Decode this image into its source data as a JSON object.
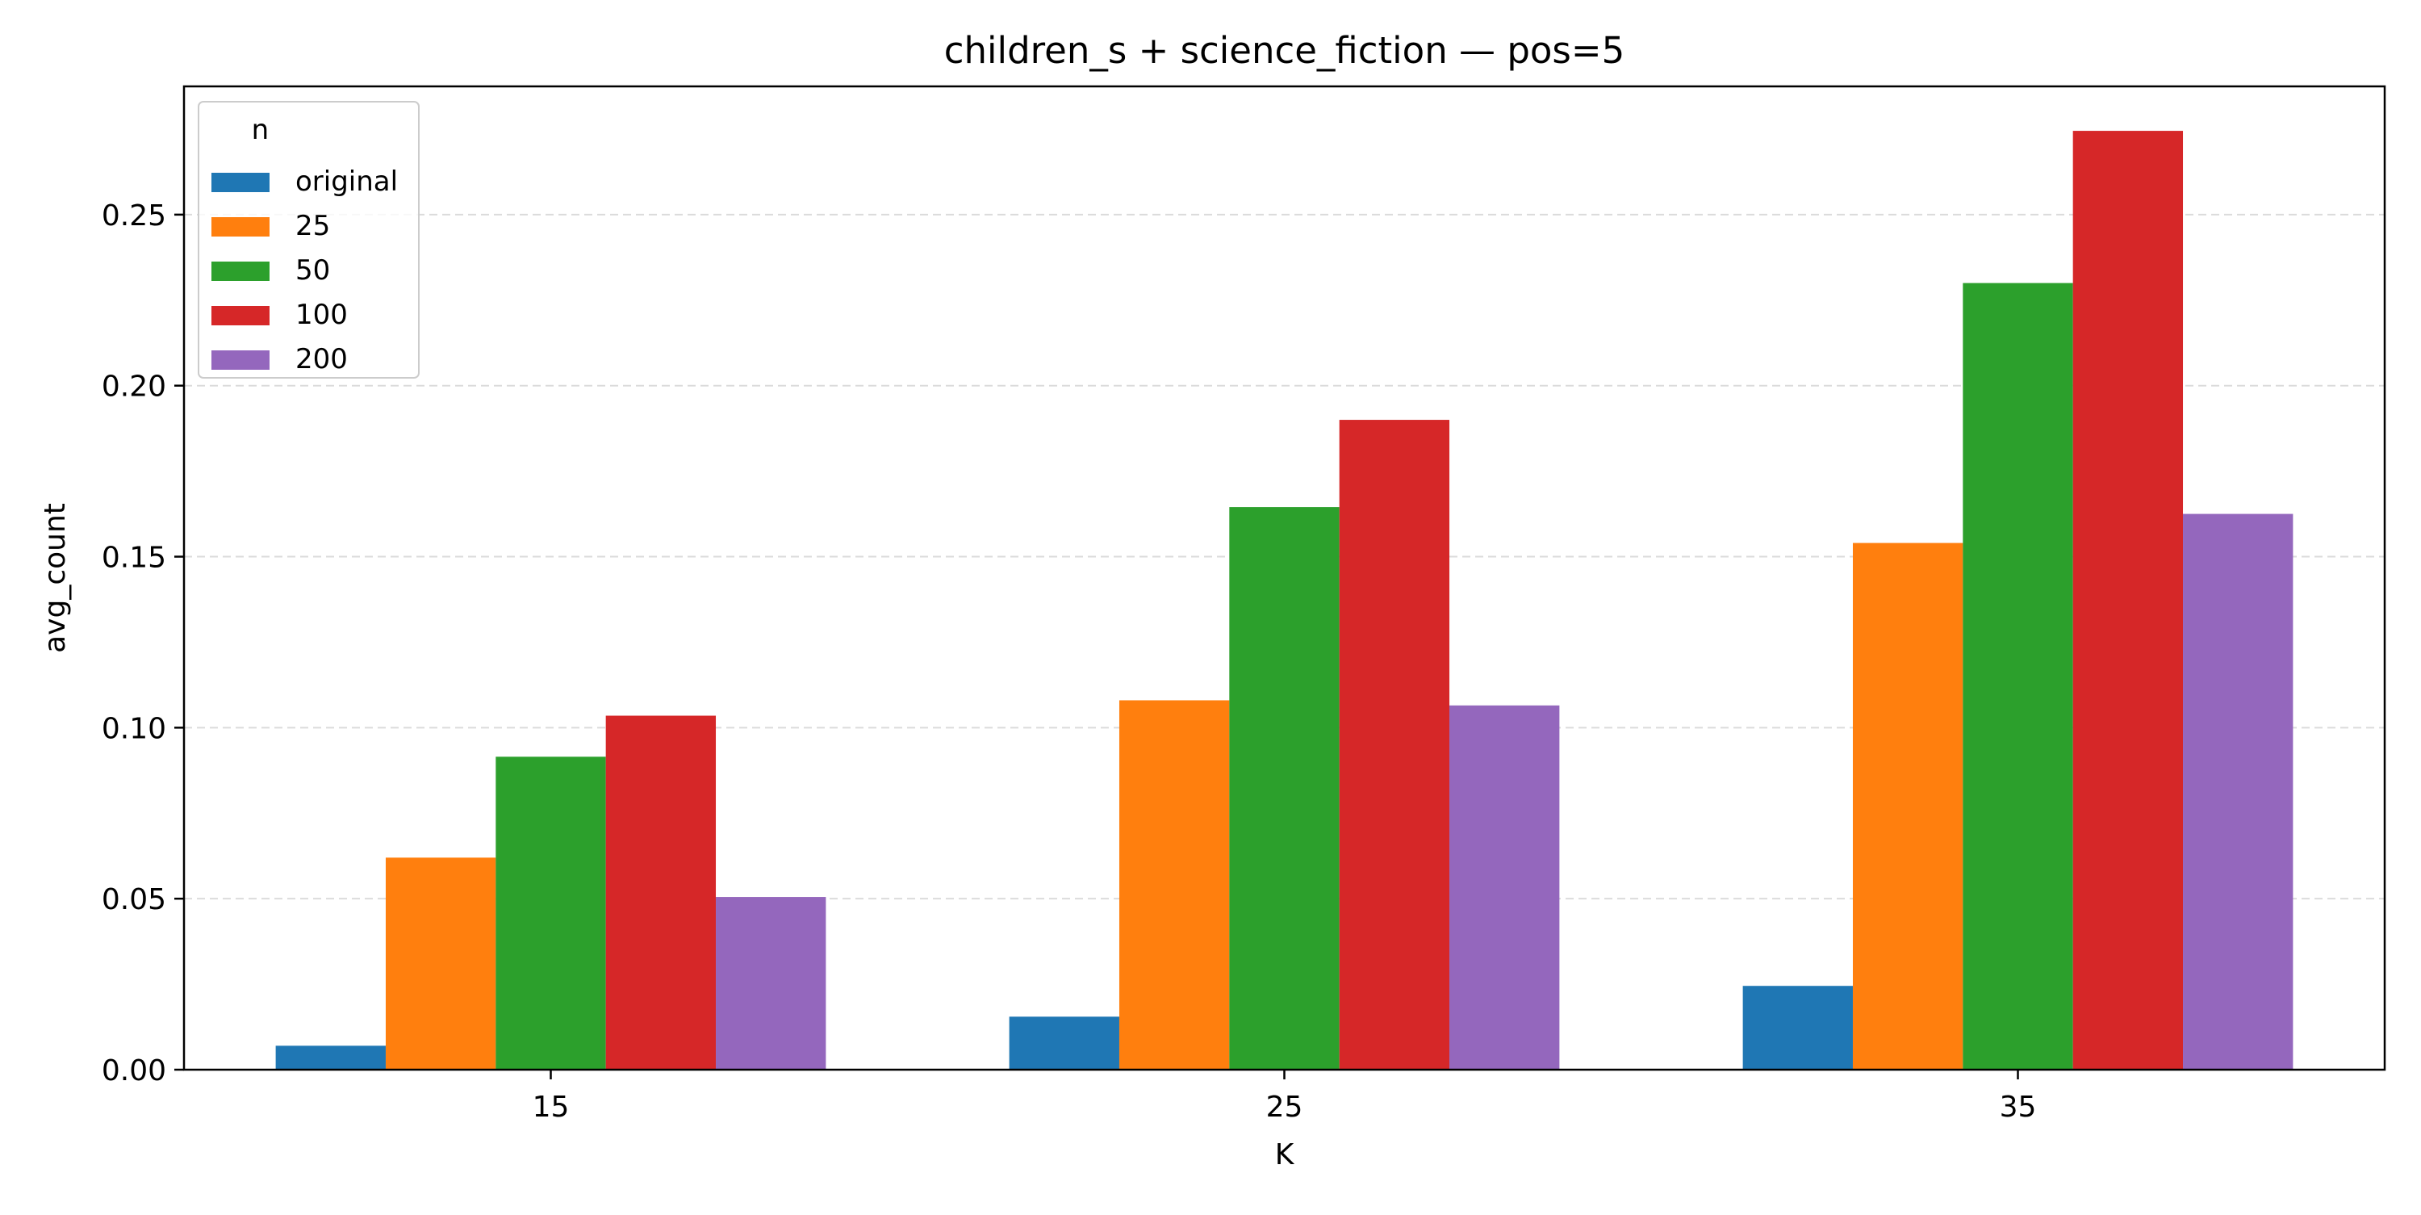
{
  "chart_data": {
    "type": "bar",
    "title": "children_s + science_fiction — pos=5",
    "xlabel": "K",
    "ylabel": "avg_count",
    "categories": [
      "15",
      "25",
      "35"
    ],
    "ylim": [
      0,
      0.2875
    ],
    "yticks": [
      0.0,
      0.05,
      0.1,
      0.15,
      0.2,
      0.25
    ],
    "ytick_labels": [
      "0.00",
      "0.05",
      "0.10",
      "0.15",
      "0.20",
      "0.25"
    ],
    "grid": "y-dashed",
    "legend": {
      "title": "n",
      "position": "top-left"
    },
    "series": [
      {
        "name": "original",
        "color": "#1f77b4",
        "values": [
          0.007,
          0.0155,
          0.0245
        ]
      },
      {
        "name": "25",
        "color": "#ff7f0e",
        "values": [
          0.062,
          0.108,
          0.154
        ]
      },
      {
        "name": "50",
        "color": "#2ca02c",
        "values": [
          0.0915,
          0.1645,
          0.23
        ]
      },
      {
        "name": "100",
        "color": "#d62728",
        "values": [
          0.1035,
          0.19,
          0.2745
        ]
      },
      {
        "name": "200",
        "color": "#9467bd",
        "values": [
          0.0505,
          0.1065,
          0.1625
        ]
      }
    ]
  }
}
